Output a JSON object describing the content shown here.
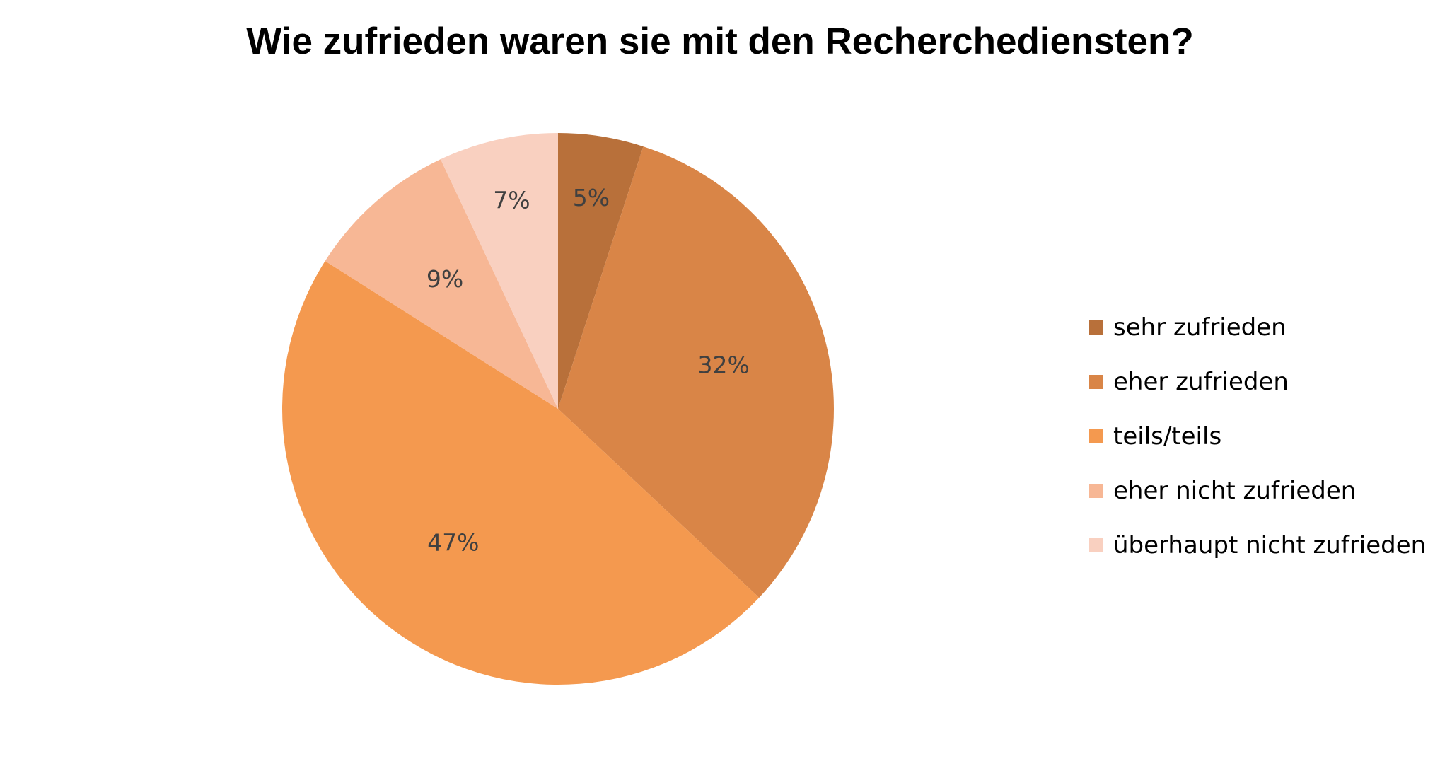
{
  "chart_data": {
    "type": "pie",
    "title": "Wie zufrieden waren sie mit den Recherchediensten?",
    "unit": "%",
    "start_angle_deg": 0,
    "direction": "clockwise",
    "legend_position": "right",
    "slices": [
      {
        "label": "sehr zufrieden",
        "value": 5,
        "color": "#b8703a"
      },
      {
        "label": "eher zufrieden",
        "value": 32,
        "color": "#d98547"
      },
      {
        "label": "teils/teils",
        "value": 47,
        "color": "#f4994f"
      },
      {
        "label": "eher nicht zufrieden",
        "value": 9,
        "color": "#f7b795"
      },
      {
        "label": "überhaupt nicht zufrieden",
        "value": 7,
        "color": "#f9d0c0"
      }
    ]
  }
}
